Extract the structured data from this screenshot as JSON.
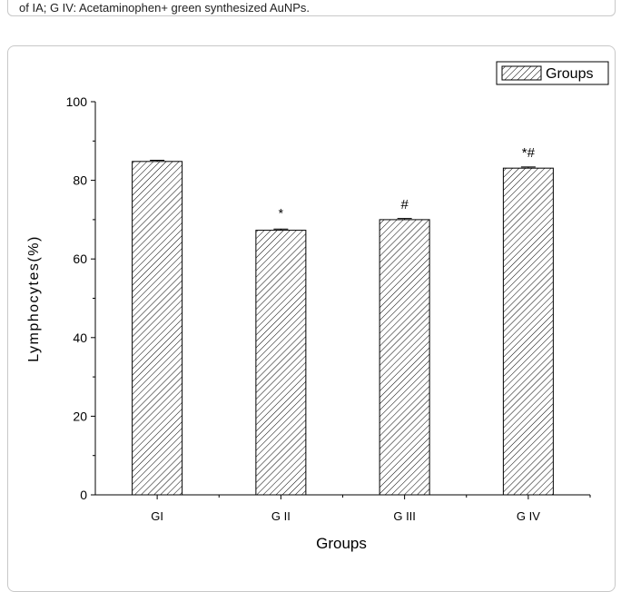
{
  "caption": "of IA; G IV: Acetaminophen+ green synthesized AuNPs.",
  "chart_data": {
    "type": "bar",
    "categories": [
      "GI",
      "G II",
      "G III",
      "G IV"
    ],
    "values": [
      84.8,
      67.3,
      70.0,
      83.1
    ],
    "errors": [
      0.3,
      0.3,
      0.3,
      0.3
    ],
    "annotations": [
      "",
      "*",
      "#",
      "*#"
    ],
    "xlabel": "Groups",
    "ylabel": "Lymphocytes(%)",
    "ylim": [
      0,
      100
    ],
    "yticks": [
      "0",
      "20",
      "40",
      "60",
      "80",
      "100"
    ],
    "legend": {
      "label": "Groups",
      "position": "top-right"
    },
    "fill_pattern": "diagonal-hatch",
    "bar_color": "#000000",
    "grid": false
  }
}
